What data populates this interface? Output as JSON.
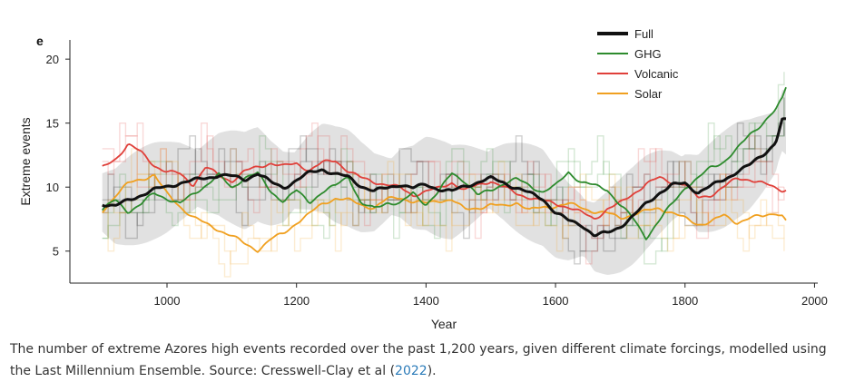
{
  "panel_letter": "e",
  "caption": {
    "text_before_link": "The number of extreme Azores high events recorded over the past 1,200 years, given different climate forcings, modelled using the Last Millennium Ensemble. Source: Cresswell-Clay et al (",
    "link_text": "2022",
    "text_after_link": ")."
  },
  "chart_data": {
    "type": "line",
    "xlabel": "Year",
    "ylabel": "Extreme events",
    "xlim": [
      850,
      2005
    ],
    "ylim": [
      2.5,
      21.5
    ],
    "xticks": [
      1000,
      1200,
      1400,
      1600,
      1800,
      2000
    ],
    "yticks": [
      5,
      10,
      15,
      20
    ],
    "grid": false,
    "legend_position": "top-right",
    "series": [
      {
        "name": "Full",
        "color": "#111111",
        "x": [
          900,
          920,
          940,
          960,
          980,
          1000,
          1020,
          1040,
          1060,
          1080,
          1100,
          1120,
          1140,
          1160,
          1180,
          1200,
          1220,
          1240,
          1260,
          1280,
          1300,
          1320,
          1340,
          1360,
          1380,
          1400,
          1420,
          1440,
          1460,
          1480,
          1500,
          1520,
          1540,
          1560,
          1580,
          1600,
          1620,
          1640,
          1660,
          1680,
          1700,
          1720,
          1740,
          1760,
          1780,
          1800,
          1820,
          1840,
          1860,
          1880,
          1900,
          1920,
          1940,
          1950,
          1957
        ],
        "values": [
          8.8,
          8.5,
          8.9,
          9.3,
          9.7,
          10.0,
          10.4,
          10.6,
          10.8,
          11.0,
          10.8,
          10.5,
          11.0,
          10.3,
          10.0,
          10.6,
          11.2,
          11.5,
          11.0,
          10.7,
          10.0,
          9.6,
          9.9,
          10.3,
          10.0,
          10.3,
          9.9,
          9.6,
          10.0,
          10.3,
          10.6,
          10.4,
          10.0,
          9.6,
          9.2,
          8.0,
          7.3,
          7.0,
          6.1,
          6.4,
          7.0,
          7.8,
          8.8,
          9.6,
          10.1,
          10.2,
          9.5,
          10.0,
          10.6,
          11.3,
          11.8,
          12.6,
          13.5,
          15.2,
          15.1
        ]
      },
      {
        "name": "GHG",
        "color": "#2e8b2e",
        "x": [
          900,
          920,
          940,
          960,
          980,
          1000,
          1020,
          1040,
          1060,
          1080,
          1100,
          1120,
          1140,
          1160,
          1180,
          1200,
          1220,
          1240,
          1260,
          1280,
          1300,
          1320,
          1340,
          1360,
          1380,
          1400,
          1420,
          1440,
          1460,
          1480,
          1500,
          1520,
          1540,
          1560,
          1580,
          1600,
          1620,
          1640,
          1660,
          1680,
          1700,
          1720,
          1740,
          1760,
          1780,
          1800,
          1820,
          1840,
          1860,
          1880,
          1900,
          1920,
          1940,
          1950,
          1957
        ],
        "values": [
          8.2,
          8.9,
          8.0,
          8.6,
          9.5,
          9.2,
          8.8,
          9.5,
          10.2,
          10.9,
          9.8,
          10.7,
          11.0,
          9.7,
          9.0,
          9.8,
          8.9,
          9.6,
          10.0,
          10.8,
          8.6,
          8.3,
          8.9,
          8.8,
          9.6,
          8.7,
          9.6,
          11.0,
          10.4,
          9.3,
          9.8,
          10.4,
          10.7,
          10.2,
          9.6,
          10.0,
          11.1,
          10.3,
          10.1,
          9.9,
          8.7,
          7.6,
          6.1,
          7.3,
          8.6,
          9.9,
          10.6,
          11.6,
          12.1,
          13.0,
          14.2,
          15.0,
          15.9,
          16.8,
          17.9
        ]
      },
      {
        "name": "Volcanic",
        "color": "#e0403a",
        "x": [
          900,
          920,
          940,
          960,
          980,
          1000,
          1020,
          1040,
          1060,
          1080,
          1100,
          1120,
          1140,
          1160,
          1180,
          1200,
          1220,
          1240,
          1260,
          1280,
          1300,
          1320,
          1340,
          1360,
          1380,
          1400,
          1420,
          1440,
          1460,
          1480,
          1500,
          1520,
          1540,
          1560,
          1580,
          1600,
          1620,
          1640,
          1660,
          1680,
          1700,
          1720,
          1740,
          1760,
          1780,
          1800,
          1820,
          1840,
          1860,
          1880,
          1900,
          1920,
          1940,
          1950,
          1957
        ],
        "values": [
          11.4,
          12.1,
          13.3,
          12.7,
          11.8,
          11.3,
          11.1,
          10.2,
          11.5,
          10.8,
          10.4,
          11.2,
          11.6,
          12.0,
          11.7,
          11.9,
          11.3,
          11.8,
          12.0,
          11.2,
          10.7,
          10.5,
          10.3,
          10.0,
          9.4,
          9.6,
          9.8,
          10.3,
          9.7,
          10.2,
          10.6,
          10.1,
          9.5,
          9.2,
          8.8,
          8.6,
          8.4,
          8.0,
          7.6,
          8.4,
          8.8,
          9.5,
          10.2,
          10.6,
          10.3,
          10.2,
          9.2,
          9.5,
          10.1,
          10.7,
          10.6,
          10.2,
          9.8,
          9.7,
          9.8
        ]
      },
      {
        "name": "Solar",
        "color": "#f0a020",
        "x": [
          900,
          920,
          940,
          960,
          980,
          1000,
          1020,
          1040,
          1060,
          1080,
          1100,
          1120,
          1140,
          1160,
          1180,
          1200,
          1220,
          1240,
          1260,
          1280,
          1300,
          1320,
          1340,
          1360,
          1380,
          1400,
          1420,
          1440,
          1460,
          1480,
          1500,
          1520,
          1540,
          1560,
          1580,
          1600,
          1620,
          1640,
          1660,
          1680,
          1700,
          1720,
          1740,
          1760,
          1780,
          1800,
          1820,
          1840,
          1860,
          1880,
          1900,
          1920,
          1940,
          1950,
          1957
        ],
        "values": [
          8.0,
          9.3,
          10.3,
          10.7,
          11.1,
          9.5,
          8.5,
          7.6,
          7.0,
          6.6,
          6.2,
          5.6,
          5.2,
          6.0,
          6.4,
          7.2,
          7.8,
          8.6,
          9.1,
          9.0,
          8.7,
          8.5,
          9.1,
          9.2,
          8.8,
          8.6,
          8.9,
          9.0,
          8.3,
          8.5,
          8.7,
          8.5,
          8.8,
          8.1,
          8.3,
          8.5,
          8.7,
          8.5,
          8.2,
          8.0,
          7.6,
          7.8,
          8.0,
          8.3,
          8.0,
          7.6,
          7.2,
          7.4,
          7.8,
          7.2,
          7.5,
          7.6,
          8.0,
          7.8,
          7.3
        ]
      }
    ]
  }
}
